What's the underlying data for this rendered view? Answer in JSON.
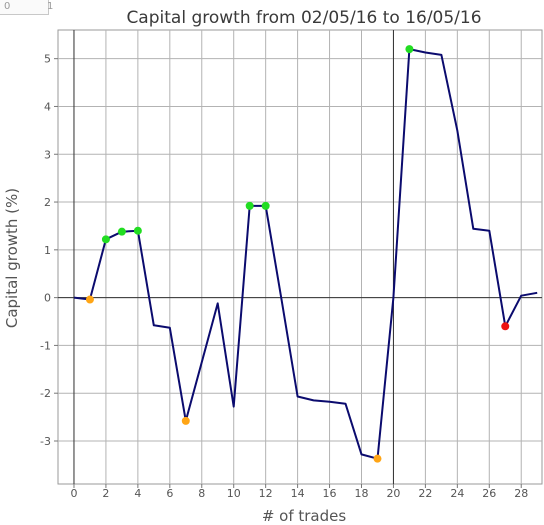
{
  "header": {
    "corner_left_value": "0",
    "corner_right_value": "1"
  },
  "chart_data": {
    "type": "line",
    "title": "Capital growth from 02/05/16 to 16/05/16",
    "xlabel": "# of trades",
    "ylabel": "Capital growth (%)",
    "xlim": [
      -1,
      29.3
    ],
    "ylim": [
      -3.9,
      5.6
    ],
    "x_ticks": [
      0,
      2,
      4,
      6,
      8,
      10,
      12,
      14,
      16,
      18,
      20,
      22,
      24,
      26,
      28
    ],
    "y_ticks": [
      -3,
      -2,
      -1,
      0,
      1,
      2,
      3,
      4,
      5
    ],
    "grid": true,
    "reference_lines": {
      "x": [
        0,
        20
      ],
      "y": [
        0
      ]
    },
    "colors": {
      "line": "#0b0b6e",
      "gain_marker": "#22dd22",
      "loss_marker": "#ffa515",
      "final_marker": "#ee1111",
      "grid": "#b3b3b3",
      "reference": "#333333"
    },
    "series": [
      {
        "x": [
          0,
          1,
          2,
          3,
          4,
          5,
          6,
          7,
          8,
          9,
          10,
          11,
          12,
          13,
          14,
          15,
          16,
          17,
          18,
          19,
          20,
          21,
          22,
          23,
          24,
          25,
          26,
          27,
          28,
          29
        ],
        "y": [
          0.0,
          -0.04,
          1.22,
          1.38,
          1.4,
          -0.58,
          -0.63,
          -2.58,
          -1.35,
          -0.12,
          -2.28,
          1.92,
          1.92,
          -0.05,
          -2.07,
          -2.15,
          -2.18,
          -2.22,
          -3.28,
          -3.37,
          0.0,
          5.2,
          5.13,
          5.08,
          3.5,
          1.44,
          1.4,
          -0.6,
          0.04,
          0.1
        ]
      }
    ],
    "markers": [
      {
        "x": 1,
        "y": -0.04,
        "kind": "loss_marker"
      },
      {
        "x": 2,
        "y": 1.22,
        "kind": "gain_marker"
      },
      {
        "x": 3,
        "y": 1.38,
        "kind": "gain_marker"
      },
      {
        "x": 4,
        "y": 1.4,
        "kind": "gain_marker"
      },
      {
        "x": 7,
        "y": -2.58,
        "kind": "loss_marker"
      },
      {
        "x": 11,
        "y": 1.92,
        "kind": "gain_marker"
      },
      {
        "x": 12,
        "y": 1.92,
        "kind": "gain_marker"
      },
      {
        "x": 19,
        "y": -3.37,
        "kind": "loss_marker"
      },
      {
        "x": 21,
        "y": 5.2,
        "kind": "gain_marker"
      },
      {
        "x": 27,
        "y": -0.6,
        "kind": "final_marker"
      }
    ]
  }
}
